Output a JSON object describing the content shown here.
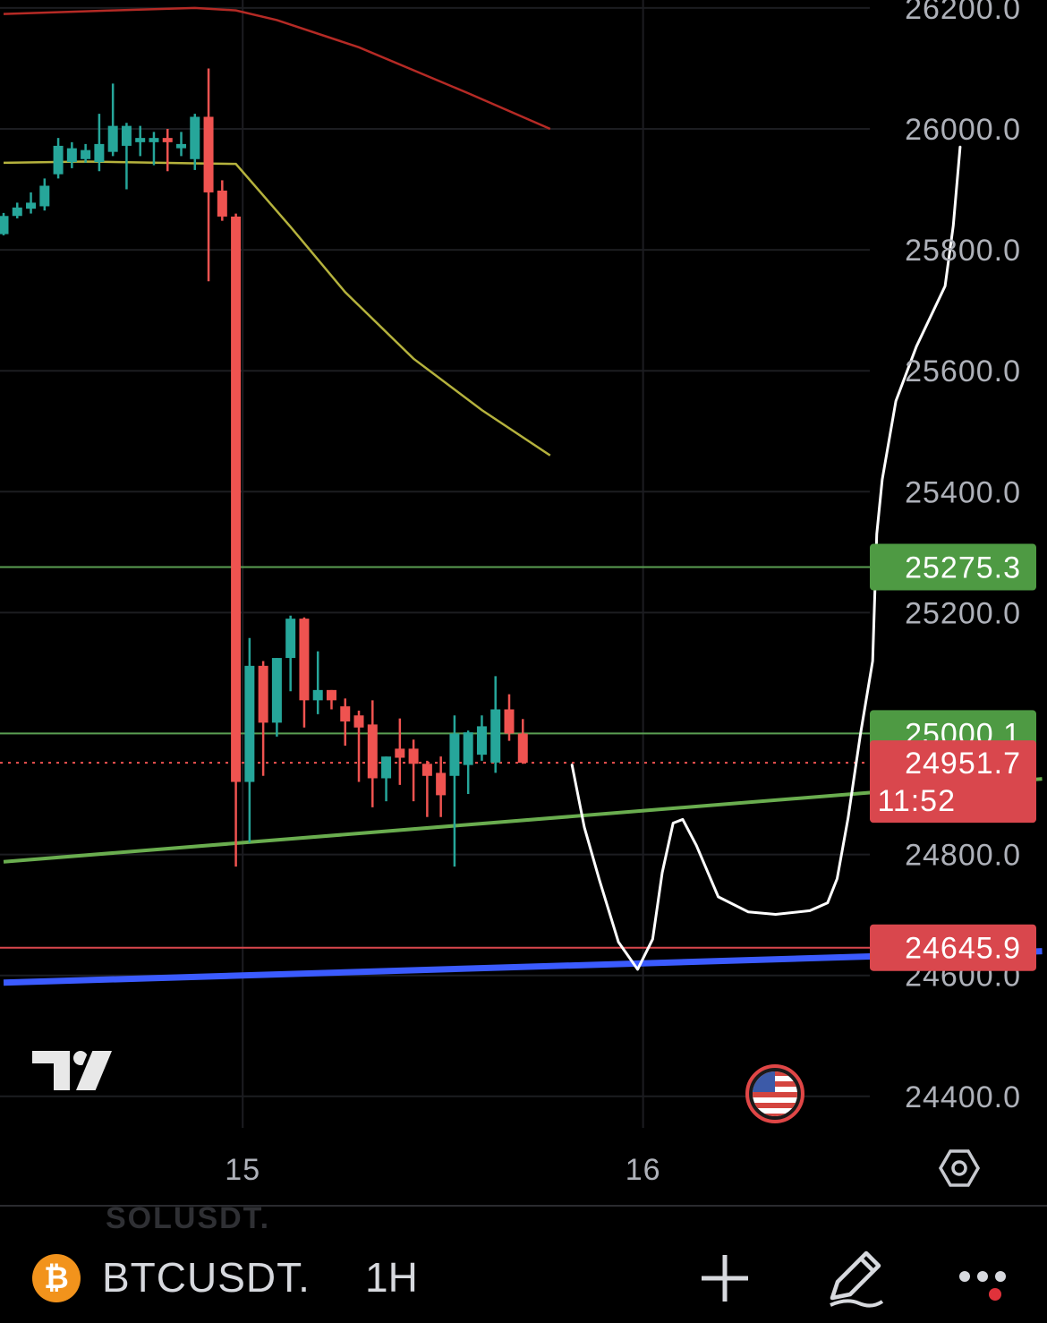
{
  "symbol": "BTCUSDT.",
  "interval": "1H",
  "ghost_symbol": "SOLUSDT.",
  "price_axis": {
    "ticks": [
      "26200.0",
      "26000.0",
      "25800.0",
      "25600.0",
      "25400.0",
      "25200.0",
      "24800.0",
      "24600.0",
      "24400.0"
    ]
  },
  "time_axis": {
    "ticks": [
      "15",
      "16"
    ]
  },
  "price_tags": {
    "level_upper": "25275.3",
    "level_lower": "25000.1",
    "last_price": "24951.7",
    "countdown": "11:52",
    "red_level": "24645.9"
  },
  "colors": {
    "up": "#26a69a",
    "down": "#ef5350",
    "green_level": "#5a9e52",
    "red_level": "#d9474d",
    "trendline_green": "#6aad4f",
    "trendline_blue": "#3b5bff",
    "ma_slow": "#b52a25",
    "ma_fast": "#b5b23d",
    "drawing": "#ffffff"
  },
  "icons": [
    "tradingview-logo-icon",
    "us-flag-icon",
    "settings-hexagon-icon",
    "bitcoin-icon",
    "plus-icon",
    "pencil-icon",
    "more-dots-icon"
  ],
  "chart_data": {
    "type": "candlestick",
    "y_range": [
      24380,
      26210
    ],
    "candles": [
      {
        "t": "14 11:00",
        "o": 25826,
        "h": 25861,
        "l": 25824,
        "c": 25856
      },
      {
        "t": "14 12:00",
        "o": 25856,
        "h": 25878,
        "l": 25852,
        "c": 25870
      },
      {
        "t": "14 13:00",
        "o": 25868,
        "h": 25895,
        "l": 25860,
        "c": 25878
      },
      {
        "t": "14 14:00",
        "o": 25872,
        "h": 25918,
        "l": 25865,
        "c": 25906
      },
      {
        "t": "14 15:00",
        "o": 25925,
        "h": 25985,
        "l": 25918,
        "c": 25972
      },
      {
        "t": "14 16:00",
        "o": 25945,
        "h": 25978,
        "l": 25935,
        "c": 25968
      },
      {
        "t": "14 17:00",
        "o": 25950,
        "h": 25975,
        "l": 25944,
        "c": 25965
      },
      {
        "t": "14 18:00",
        "o": 25945,
        "h": 26025,
        "l": 25930,
        "c": 25975
      },
      {
        "t": "14 19:00",
        "o": 25962,
        "h": 26075,
        "l": 25955,
        "c": 26005
      },
      {
        "t": "14 20:00",
        "o": 25972,
        "h": 26010,
        "l": 25900,
        "c": 26005
      },
      {
        "t": "14 21:00",
        "o": 25978,
        "h": 26005,
        "l": 25955,
        "c": 25985
      },
      {
        "t": "14 22:00",
        "o": 25978,
        "h": 25995,
        "l": 25940,
        "c": 25985
      },
      {
        "t": "14 23:00",
        "o": 25985,
        "h": 26000,
        "l": 25930,
        "c": 25978
      },
      {
        "t": "15 00:00",
        "o": 25968,
        "h": 25995,
        "l": 25955,
        "c": 25975
      },
      {
        "t": "15 01:00",
        "o": 25950,
        "h": 26025,
        "l": 25932,
        "c": 26020
      },
      {
        "t": "15 02:00",
        "o": 26020,
        "h": 26100,
        "l": 25748,
        "c": 25895
      },
      {
        "t": "15 03:00",
        "o": 25898,
        "h": 25915,
        "l": 25848,
        "c": 25855
      },
      {
        "t": "15 04:00",
        "o": 25855,
        "h": 25860,
        "l": 24780,
        "c": 24920
      },
      {
        "t": "15 05:00",
        "o": 24920,
        "h": 25158,
        "l": 24820,
        "c": 25112
      },
      {
        "t": "15 06:00",
        "o": 25112,
        "h": 25120,
        "l": 24930,
        "c": 25018
      },
      {
        "t": "15 07:00",
        "o": 25018,
        "h": 25125,
        "l": 24995,
        "c": 25125
      },
      {
        "t": "15 08:00",
        "o": 25125,
        "h": 25195,
        "l": 25070,
        "c": 25190
      },
      {
        "t": "15 09:00",
        "o": 25190,
        "h": 25192,
        "l": 25010,
        "c": 25055
      },
      {
        "t": "15 10:00",
        "o": 25055,
        "h": 25136,
        "l": 25032,
        "c": 25072
      },
      {
        "t": "15 11:00",
        "o": 25072,
        "h": 25072,
        "l": 25040,
        "c": 25055
      },
      {
        "t": "15 12:00",
        "o": 25045,
        "h": 25058,
        "l": 24980,
        "c": 25020
      },
      {
        "t": "15 13:00",
        "o": 25030,
        "h": 25038,
        "l": 24920,
        "c": 25010
      },
      {
        "t": "15 14:00",
        "o": 25015,
        "h": 25055,
        "l": 24878,
        "c": 24926
      },
      {
        "t": "15 15:00",
        "o": 24926,
        "h": 24962,
        "l": 24888,
        "c": 24962
      },
      {
        "t": "15 16:00",
        "o": 24975,
        "h": 25025,
        "l": 24915,
        "c": 24960
      },
      {
        "t": "15 17:00",
        "o": 24975,
        "h": 24990,
        "l": 24888,
        "c": 24950
      },
      {
        "t": "15 18:00",
        "o": 24950,
        "h": 24955,
        "l": 24862,
        "c": 24930
      },
      {
        "t": "15 19:00",
        "o": 24935,
        "h": 24962,
        "l": 24862,
        "c": 24898
      },
      {
        "t": "15 20:00",
        "o": 24930,
        "h": 25030,
        "l": 24780,
        "c": 25000
      },
      {
        "t": "15 21:00",
        "o": 24948,
        "h": 25005,
        "l": 24900,
        "c": 25002
      },
      {
        "t": "15 22:00",
        "o": 24965,
        "h": 25030,
        "l": 24955,
        "c": 25012
      },
      {
        "t": "15 23:00",
        "o": 24952,
        "h": 25095,
        "l": 24935,
        "c": 25040
      },
      {
        "t": "16 00:00",
        "o": 25040,
        "h": 25065,
        "l": 24988,
        "c": 25000
      },
      {
        "t": "16 01:00",
        "o": 25000,
        "h": 25024,
        "l": 24950,
        "c": 24951.7
      }
    ],
    "moving_averages": [
      {
        "color": "#b52a25",
        "points": [
          [
            0,
            26190
          ],
          [
            8,
            26196
          ],
          [
            14,
            26200
          ],
          [
            17,
            26196
          ],
          [
            20,
            26180
          ],
          [
            26,
            26135
          ],
          [
            34,
            26059
          ],
          [
            40,
            26000
          ]
        ]
      },
      {
        "color": "#b5b23d",
        "points": [
          [
            0,
            25944
          ],
          [
            6,
            25946
          ],
          [
            14,
            25943
          ],
          [
            17,
            25942
          ],
          [
            21,
            25838
          ],
          [
            25,
            25730
          ],
          [
            30,
            25620
          ],
          [
            35,
            25535
          ],
          [
            40,
            25460
          ]
        ]
      }
    ],
    "horizontal_levels": [
      {
        "price": 25275.3,
        "color": "#5a9e52"
      },
      {
        "price": 25000.1,
        "color": "#5a9e52"
      },
      {
        "price": 24645.9,
        "color": "#d9474d"
      }
    ],
    "last_price_line": 24951.7,
    "trendlines": [
      {
        "color": "#6aad4f",
        "from": [
          0,
          24788
        ],
        "to": [
          76,
          24925
        ]
      },
      {
        "color": "#3b5bff",
        "from": [
          0,
          24588
        ],
        "to": [
          76,
          24640
        ]
      }
    ],
    "drawn_path": [
      [
        41.6,
        24948
      ],
      [
        42.5,
        24845
      ],
      [
        43.6,
        24758
      ],
      [
        45.0,
        24655
      ],
      [
        46.4,
        24610
      ],
      [
        47.5,
        24660
      ],
      [
        48.2,
        24770
      ],
      [
        49.0,
        24852
      ],
      [
        49.7,
        24858
      ],
      [
        50.7,
        24815
      ],
      [
        52.3,
        24730
      ],
      [
        54.5,
        24705
      ],
      [
        56.5,
        24701
      ],
      [
        59.0,
        24707
      ],
      [
        60.3,
        24720
      ],
      [
        61.0,
        24760
      ],
      [
        61.8,
        24860
      ],
      [
        62.7,
        24998
      ],
      [
        63.6,
        25120
      ],
      [
        63.9,
        25330
      ],
      [
        64.3,
        25420
      ],
      [
        65.3,
        25550
      ],
      [
        66.8,
        25640
      ],
      [
        68.9,
        25740
      ],
      [
        69.5,
        25840
      ],
      [
        70.0,
        25970
      ]
    ],
    "x_labels": [
      {
        "label": "15",
        "index": 17.5
      },
      {
        "label": "16",
        "index": 46.8
      }
    ]
  }
}
